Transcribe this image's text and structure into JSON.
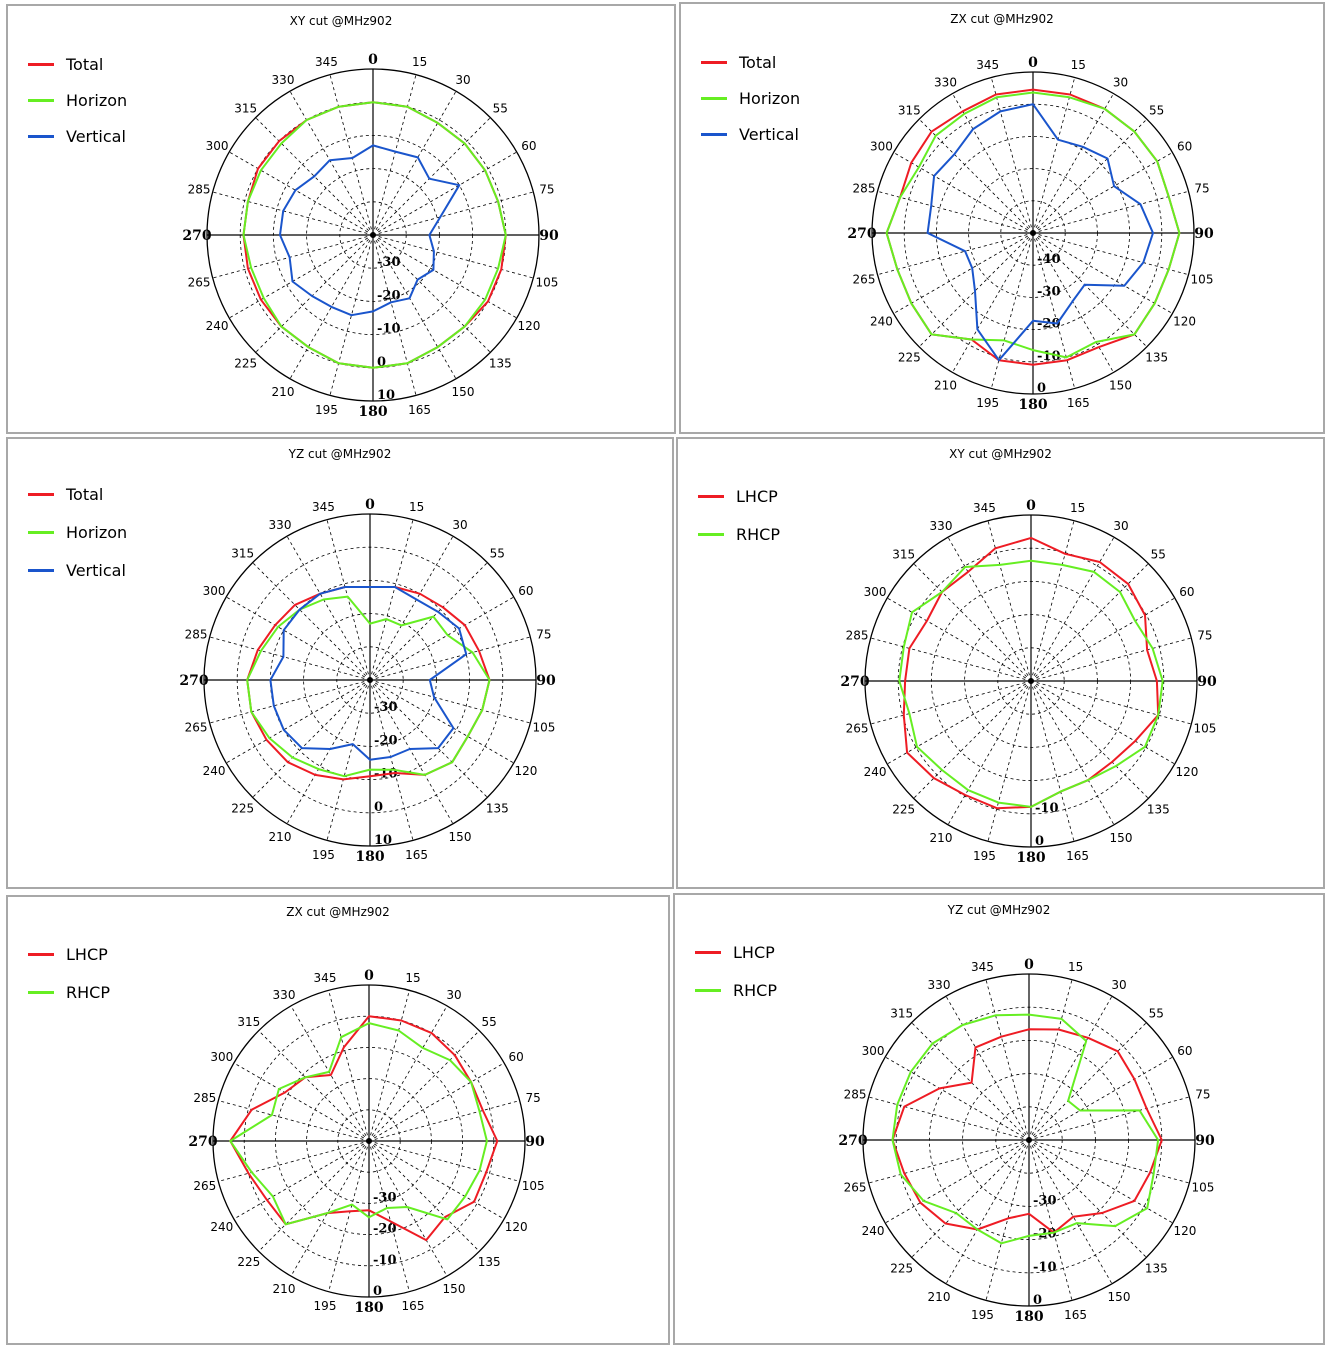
{
  "colors": {
    "red": "#ee1c24",
    "green": "#66ee22",
    "blue": "#1a55cc",
    "grid": "#000000"
  },
  "chart_data": [
    {
      "type": "polar",
      "title": "XY cut @MHz902",
      "legend": {
        "placement": "top-left"
      },
      "angle_ticks": [
        0,
        15,
        30,
        55,
        60,
        75,
        90,
        105,
        120,
        135,
        150,
        165,
        180,
        195,
        210,
        225,
        240,
        265,
        270,
        285,
        300,
        315,
        330,
        345
      ],
      "radial_ticks": [
        "-30",
        "-20",
        "-10",
        "0",
        "10"
      ],
      "rlim": [
        -40,
        10
      ],
      "series": [
        {
          "name": "Total",
          "color": "red",
          "r": [
            0,
            0,
            -1,
            -1,
            -1,
            -1,
            0,
            0,
            0,
            -1,
            -1,
            0,
            0,
            0,
            -1,
            -1,
            -1,
            -1,
            -1,
            -1,
            0,
            0,
            0,
            0
          ]
        },
        {
          "name": "Horizon",
          "color": "green",
          "r": [
            0,
            0,
            -1,
            -1,
            -1,
            -1,
            0,
            -1,
            -1,
            -1,
            -1,
            0,
            0,
            0,
            -1,
            -1,
            -2,
            -2,
            -1,
            -1,
            -1,
            -1,
            0,
            0
          ]
        },
        {
          "name": "Vertical",
          "color": "blue",
          "r": [
            -13,
            -14,
            -13,
            -16,
            -10,
            -19,
            -23,
            -21,
            -19,
            -21,
            -18,
            -19,
            -17,
            -15,
            -15,
            -14,
            -12,
            -14,
            -12,
            -12,
            -13,
            -15,
            -14,
            -16
          ]
        }
      ]
    },
    {
      "type": "polar",
      "title": "ZX cut @MHz902",
      "legend": {
        "placement": "top-left"
      },
      "angle_ticks": [
        0,
        15,
        30,
        55,
        60,
        75,
        90,
        105,
        120,
        135,
        150,
        165,
        180,
        195,
        210,
        225,
        240,
        265,
        270,
        285,
        300,
        315,
        330,
        345
      ],
      "radial_ticks": [
        "-40",
        "-30",
        "-20",
        "-10",
        "0"
      ],
      "rlim": [
        -50,
        5
      ],
      "series": [
        {
          "name": "Total",
          "color": "red",
          "r": [
            -1,
            -1,
            -1,
            -1,
            -1,
            -2,
            0,
            -2,
            -2,
            -1,
            -5,
            -5,
            -5,
            -5,
            -8,
            -1,
            -2,
            -2,
            0,
            -3,
            -2,
            -1,
            -2,
            -1
          ]
        },
        {
          "name": "Horizon",
          "color": "green",
          "r": [
            -2,
            -2,
            -1,
            -1,
            -1,
            -2,
            0,
            -2,
            -2,
            -1,
            -7,
            -6,
            -10,
            -12,
            -8,
            -1,
            -2,
            -2,
            0,
            -3,
            -5,
            -3,
            -3,
            -2
          ]
        },
        {
          "name": "Vertical",
          "color": "blue",
          "r": [
            -6,
            -17,
            -16,
            -14,
            -18,
            -12,
            -9,
            -11,
            -14,
            -25,
            -23,
            -18,
            -20,
            -5,
            -12,
            -22,
            -26,
            -26,
            -14,
            -14,
            -11,
            -12,
            -9,
            -7
          ]
        }
      ]
    },
    {
      "type": "polar",
      "title": "YZ cut @MHz902",
      "legend": {
        "placement": "top-left"
      },
      "angle_ticks": [
        0,
        15,
        30,
        55,
        60,
        75,
        90,
        105,
        120,
        135,
        150,
        165,
        180,
        195,
        210,
        225,
        240,
        265,
        270,
        285,
        300,
        315,
        330,
        345
      ],
      "radial_ticks": [
        "-30",
        "-20",
        "-10",
        "0",
        "10"
      ],
      "rlim": [
        -40,
        10
      ],
      "series": [
        {
          "name": "Total",
          "color": "red",
          "r": [
            -12,
            -11,
            -10,
            -9,
            -7,
            -6,
            -4,
            -5,
            -6,
            -5,
            -7,
            -11,
            -11,
            -9,
            -7,
            -5,
            -4,
            -3,
            -3,
            -5,
            -7,
            -8,
            -10,
            -11
          ]
        },
        {
          "name": "Horizon",
          "color": "green",
          "r": [
            -23,
            -21,
            -21,
            -13,
            -13,
            -8,
            -4,
            -5,
            -6,
            -5,
            -7,
            -12,
            -13,
            -10,
            -9,
            -7,
            -5,
            -3,
            -3,
            -6,
            -8,
            -10,
            -12,
            -14
          ]
        },
        {
          "name": "Vertical",
          "color": "blue",
          "r": [
            -12,
            -11,
            -12,
            -11,
            -9,
            -10,
            -22,
            -20,
            -11,
            -11,
            -16,
            -16,
            -16,
            -20,
            -16,
            -11,
            -10,
            -10,
            -10,
            -13,
            -10,
            -10,
            -10,
            -11
          ]
        }
      ]
    },
    {
      "type": "polar",
      "title": "XY cut @MHz902",
      "legend": {
        "placement": "top-left"
      },
      "angle_ticks": [
        0,
        15,
        30,
        55,
        60,
        75,
        90,
        105,
        120,
        135,
        150,
        165,
        180,
        195,
        210,
        225,
        240,
        265,
        270,
        285,
        300,
        315,
        330,
        345
      ],
      "radial_ticks": [
        "-10",
        "0"
      ],
      "rlim": [
        -25,
        4
      ],
      "series": [
        {
          "name": "LHCP",
          "color": "red",
          "r": [
            0,
            -2,
            -1,
            -1,
            -2,
            -4,
            -3,
            -2,
            -4,
            -5,
            -5,
            -5,
            -3,
            -2,
            -2,
            -1,
            0,
            -2,
            -3,
            -3,
            -4,
            -3,
            -3,
            -1
          ]
        },
        {
          "name": "RHCP",
          "color": "green",
          "r": [
            -4,
            -4,
            -3,
            -3,
            -4,
            -3,
            -2,
            -2,
            -2,
            -4,
            -5,
            -5,
            -3,
            -3,
            -3,
            -3,
            -2,
            -3,
            -2,
            -2,
            -1,
            -3,
            -2,
            -4
          ]
        }
      ]
    },
    {
      "type": "polar",
      "title": "ZX cut @MHz902",
      "legend": {
        "placement": "top-left"
      },
      "angle_ticks": [
        0,
        15,
        30,
        55,
        60,
        75,
        90,
        105,
        120,
        135,
        150,
        165,
        180,
        195,
        210,
        225,
        240,
        265,
        270,
        285,
        300,
        315,
        330,
        345
      ],
      "radial_ticks": [
        "-30",
        "-20",
        "-10",
        "0"
      ],
      "rlim": [
        -40,
        5
      ],
      "series": [
        {
          "name": "LHCP",
          "color": "red",
          "r": [
            -4,
            -4,
            -4,
            -5,
            -6,
            -6,
            -3,
            -5,
            -5,
            -9,
            -7,
            -16,
            -20,
            -19,
            -16,
            -6,
            -6,
            -4,
            0,
            -5,
            -12,
            -14,
            -18,
            -12
          ]
        },
        {
          "name": "RHCP",
          "color": "green",
          "r": [
            -6,
            -7,
            -9,
            -7,
            -6,
            -7,
            -6,
            -7,
            -8,
            -8,
            -18,
            -20,
            -18,
            -21,
            -16,
            -6,
            -8,
            -5,
            0,
            -11,
            -10,
            -14,
            -17,
            -9
          ]
        }
      ]
    },
    {
      "type": "polar",
      "title": "YZ cut @MHz902",
      "legend": {
        "placement": "top-left"
      },
      "angle_ticks": [
        0,
        15,
        30,
        55,
        60,
        75,
        90,
        105,
        120,
        135,
        150,
        165,
        180,
        195,
        210,
        225,
        240,
        265,
        270,
        285,
        300,
        315,
        330,
        345
      ],
      "radial_ticks": [
        "-30",
        "-20",
        "-10",
        "0"
      ],
      "rlim": [
        -40,
        5
      ],
      "series": [
        {
          "name": "LHCP",
          "color": "red",
          "r": [
            -10,
            -9,
            -8,
            -6,
            -7,
            -7,
            -4,
            -6,
            -7,
            -12,
            -16,
            -14,
            -20,
            -18,
            -12,
            -8,
            -6,
            -5,
            -3,
            -5,
            -12,
            -18,
            -11,
            -11
          ]
        },
        {
          "name": "RHCP",
          "color": "green",
          "r": [
            -6,
            -6,
            -9,
            -25,
            -24,
            -9,
            -5,
            -5,
            -3,
            -7,
            -14,
            -14,
            -14,
            -11,
            -12,
            -12,
            -7,
            -4,
            -3,
            -3,
            -3,
            -3,
            -4,
            -5
          ]
        }
      ]
    }
  ]
}
